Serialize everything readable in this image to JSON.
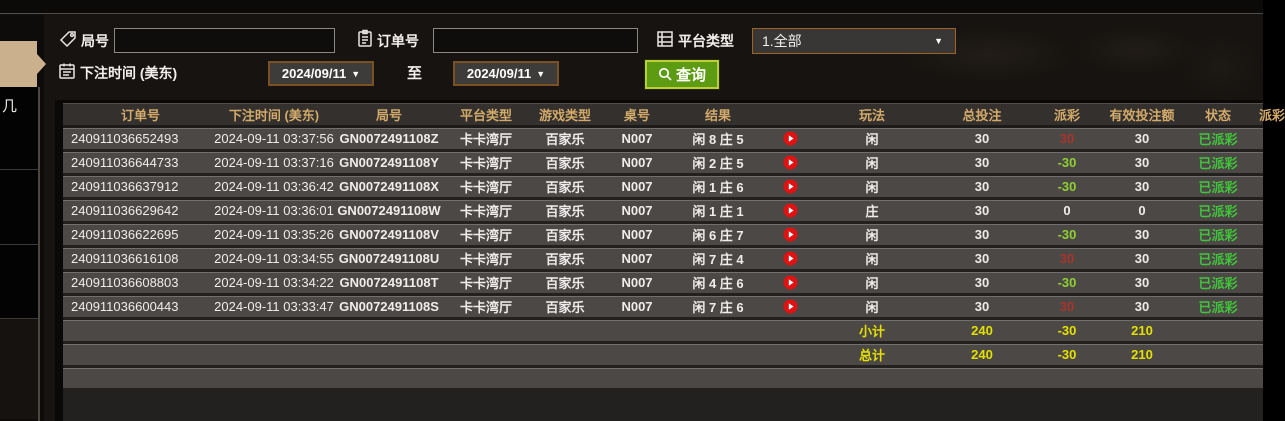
{
  "sidebar": {
    "partial_label": "几"
  },
  "filters": {
    "game_no_label": "局号",
    "order_no_label": "订单号",
    "platform_label": "平台类型",
    "platform_value": "1.全部",
    "bet_time_label": "下注时间 (美东)",
    "date_from": "2024/09/11",
    "to_label": "至",
    "date_to": "2024/09/11",
    "search_label": "查询"
  },
  "icons": {
    "game_no": "tag-icon",
    "order_no": "clipboard-icon",
    "platform": "list-icon",
    "bet_time": "calendar-icon",
    "search": "magnifier-icon",
    "result_replay": "play-icon"
  },
  "colors": {
    "header_text": "#d2aa6a",
    "payout_win_red": "#a8342c",
    "payout_loss_green": "#8fd032",
    "totals_yellow": "#e3e000",
    "status_paid_green": "#43c33c",
    "search_button_green": "#5d9c12",
    "border_brown": "#7c5122",
    "sidebar_active_tan": "#cbb08e"
  },
  "table": {
    "headers": [
      "订单号",
      "下注时间 (美东)",
      "局号",
      "平台类型",
      "游戏类型",
      "桌号",
      "结果",
      "玩法",
      "总投注",
      "派彩",
      "有效投注额",
      "状态"
    ],
    "clipped_header": "派彩",
    "rows": [
      {
        "order_no": "240911036652493",
        "bet_time": "2024-09-11 03:37:56",
        "game_no": "GN0072491108Z",
        "platform": "卡卡湾厅",
        "game_type": "百家乐",
        "table_no": "N007",
        "result": "闲 8 庄 5",
        "play": "闲",
        "total_bet": "30",
        "payout": "30",
        "payout_color": "win",
        "valid_bet": "30",
        "status": "已派彩"
      },
      {
        "order_no": "240911036644733",
        "bet_time": "2024-09-11 03:37:16",
        "game_no": "GN0072491108Y",
        "platform": "卡卡湾厅",
        "game_type": "百家乐",
        "table_no": "N007",
        "result": "闲 2 庄 5",
        "play": "闲",
        "total_bet": "30",
        "payout": "-30",
        "payout_color": "loss",
        "valid_bet": "30",
        "status": "已派彩"
      },
      {
        "order_no": "240911036637912",
        "bet_time": "2024-09-11 03:36:42",
        "game_no": "GN0072491108X",
        "platform": "卡卡湾厅",
        "game_type": "百家乐",
        "table_no": "N007",
        "result": "闲 1 庄 6",
        "play": "闲",
        "total_bet": "30",
        "payout": "-30",
        "payout_color": "loss",
        "valid_bet": "30",
        "status": "已派彩"
      },
      {
        "order_no": "240911036629642",
        "bet_time": "2024-09-11 03:36:01",
        "game_no": "GN0072491108W",
        "platform": "卡卡湾厅",
        "game_type": "百家乐",
        "table_no": "N007",
        "result": "闲 1 庄 1",
        "play": "庄",
        "total_bet": "30",
        "payout": "0",
        "payout_color": "zero",
        "valid_bet": "0",
        "status": "已派彩"
      },
      {
        "order_no": "240911036622695",
        "bet_time": "2024-09-11 03:35:26",
        "game_no": "GN0072491108V",
        "platform": "卡卡湾厅",
        "game_type": "百家乐",
        "table_no": "N007",
        "result": "闲 6 庄 7",
        "play": "闲",
        "total_bet": "30",
        "payout": "-30",
        "payout_color": "loss",
        "valid_bet": "30",
        "status": "已派彩"
      },
      {
        "order_no": "240911036616108",
        "bet_time": "2024-09-11 03:34:55",
        "game_no": "GN0072491108U",
        "platform": "卡卡湾厅",
        "game_type": "百家乐",
        "table_no": "N007",
        "result": "闲 7 庄 4",
        "play": "闲",
        "total_bet": "30",
        "payout": "30",
        "payout_color": "win",
        "valid_bet": "30",
        "status": "已派彩"
      },
      {
        "order_no": "240911036608803",
        "bet_time": "2024-09-11 03:34:22",
        "game_no": "GN0072491108T",
        "platform": "卡卡湾厅",
        "game_type": "百家乐",
        "table_no": "N007",
        "result": "闲 4 庄 6",
        "play": "闲",
        "total_bet": "30",
        "payout": "-30",
        "payout_color": "loss",
        "valid_bet": "30",
        "status": "已派彩"
      },
      {
        "order_no": "240911036600443",
        "bet_time": "2024-09-11 03:33:47",
        "game_no": "GN0072491108S",
        "platform": "卡卡湾厅",
        "game_type": "百家乐",
        "table_no": "N007",
        "result": "闲 7 庄 6",
        "play": "闲",
        "total_bet": "30",
        "payout": "30",
        "payout_color": "win",
        "valid_bet": "30",
        "status": "已派彩"
      }
    ],
    "subtotal": {
      "label": "小计",
      "total_bet": "240",
      "payout": "-30",
      "valid_bet": "210"
    },
    "grand_total": {
      "label": "总计",
      "total_bet": "240",
      "payout": "-30",
      "valid_bet": "210"
    }
  }
}
